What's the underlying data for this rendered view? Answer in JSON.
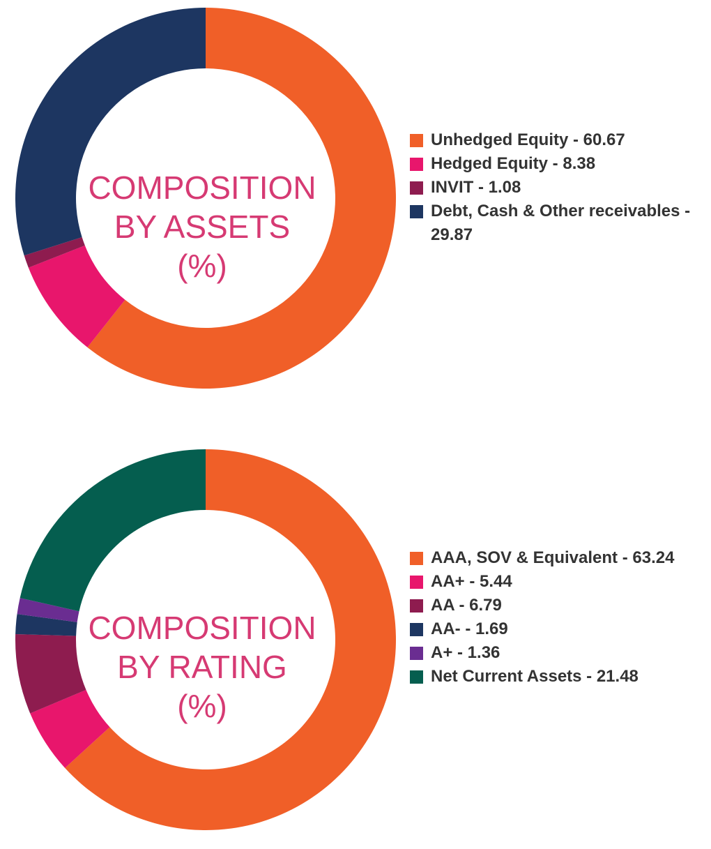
{
  "chart_data": [
    {
      "type": "pie",
      "title_lines": [
        "COMPOSITION",
        "BY ASSETS",
        "(%)"
      ],
      "slices": [
        {
          "label": "Unhedged Equity - 60.67",
          "value": 60.67,
          "color": "#f05f28"
        },
        {
          "label": "Hedged Equity - 8.38",
          "value": 8.38,
          "color": "#e8166c"
        },
        {
          "label": "INVIT - 1.08",
          "value": 1.08,
          "color": "#8e1c4f"
        },
        {
          "label": "Debt, Cash & Other receivables - 29.87",
          "value": 29.87,
          "color": "#1d3661"
        }
      ]
    },
    {
      "type": "pie",
      "title_lines": [
        "COMPOSITION",
        "BY RATING",
        "(%)"
      ],
      "slices": [
        {
          "label": "AAA, SOV & Equivalent - 63.24",
          "value": 63.24,
          "color": "#f05f28"
        },
        {
          "label": "AA+ - 5.44",
          "value": 5.44,
          "color": "#e8166c"
        },
        {
          "label": "AA - 6.79",
          "value": 6.79,
          "color": "#8e1c4f"
        },
        {
          "label": "AA- - 1.69",
          "value": 1.69,
          "color": "#1d3661"
        },
        {
          "label": "A+ - 1.36",
          "value": 1.36,
          "color": "#6a2d91"
        },
        {
          "label": "Net Current Assets - 21.48",
          "value": 21.48,
          "color": "#055e4f"
        }
      ]
    }
  ]
}
